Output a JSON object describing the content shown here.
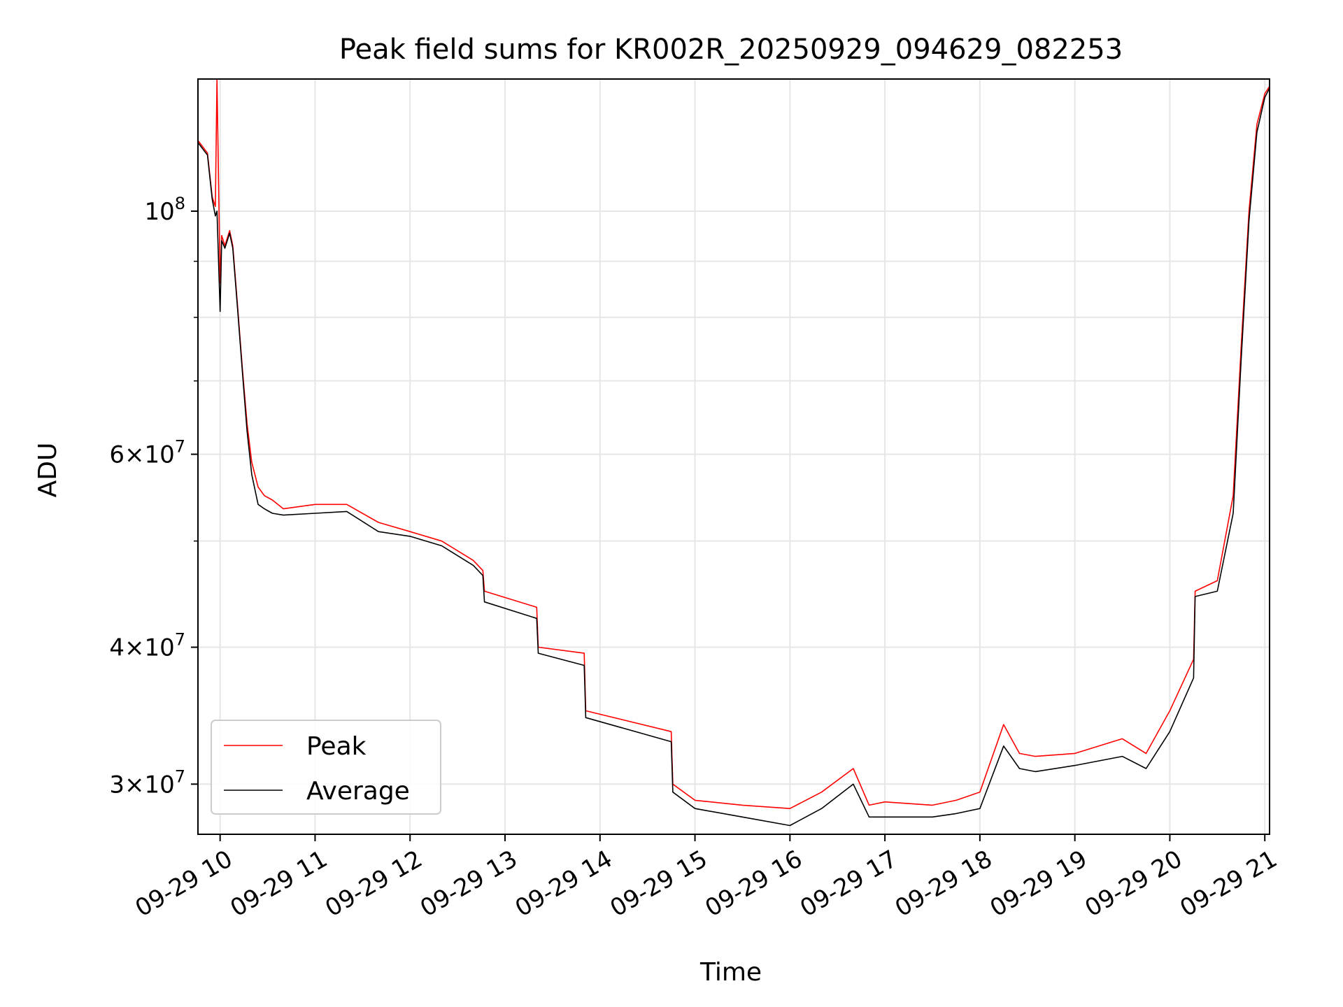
{
  "chart_data": {
    "type": "line",
    "title": "Peak field sums for KR002R_20250929_094629_082253",
    "xlabel": "Time",
    "ylabel": "ADU",
    "yscale": "log",
    "grid": true,
    "legend_position": "lower-left",
    "xlim": [
      "2025-09-29 09:46",
      "2025-09-29 21:03"
    ],
    "ylim": [
      27000000,
      132000000
    ],
    "x_ticks": [
      {
        "value": "2025-09-29 10:00",
        "label": "09-29 10"
      },
      {
        "value": "2025-09-29 11:00",
        "label": "09-29 11"
      },
      {
        "value": "2025-09-29 12:00",
        "label": "09-29 12"
      },
      {
        "value": "2025-09-29 13:00",
        "label": "09-29 13"
      },
      {
        "value": "2025-09-29 14:00",
        "label": "09-29 14"
      },
      {
        "value": "2025-09-29 15:00",
        "label": "09-29 15"
      },
      {
        "value": "2025-09-29 16:00",
        "label": "09-29 16"
      },
      {
        "value": "2025-09-29 17:00",
        "label": "09-29 17"
      },
      {
        "value": "2025-09-29 18:00",
        "label": "09-29 18"
      },
      {
        "value": "2025-09-29 19:00",
        "label": "09-29 19"
      },
      {
        "value": "2025-09-29 20:00",
        "label": "09-29 20"
      },
      {
        "value": "2025-09-29 21:00",
        "label": "09-29 21"
      }
    ],
    "y_ticks_major": [
      {
        "value": 30000000,
        "coef": "3",
        "exp": "7"
      },
      {
        "value": 40000000,
        "coef": "4",
        "exp": "7"
      },
      {
        "value": 60000000,
        "coef": "6",
        "exp": "7"
      },
      {
        "value": 100000000,
        "coef": "",
        "exp": "8"
      }
    ],
    "y_ticks_minor": [
      50000000,
      70000000,
      80000000,
      90000000
    ],
    "series": [
      {
        "name": "Peak",
        "color": "#ff0000",
        "x": [
          "2025-09-29 09:46",
          "2025-09-29 09:52",
          "2025-09-29 09:55",
          "2025-09-29 09:57",
          "2025-09-29 09:58",
          "2025-09-29 10:00",
          "2025-09-29 10:01",
          "2025-09-29 10:03",
          "2025-09-29 10:06",
          "2025-09-29 10:08",
          "2025-09-29 10:11",
          "2025-09-29 10:14",
          "2025-09-29 10:17",
          "2025-09-29 10:20",
          "2025-09-29 10:24",
          "2025-09-29 10:28",
          "2025-09-29 10:33",
          "2025-09-29 10:40",
          "2025-09-29 11:00",
          "2025-09-29 11:20",
          "2025-09-29 11:40",
          "2025-09-29 12:00",
          "2025-09-29 12:20",
          "2025-09-29 12:40",
          "2025-09-29 12:46",
          "2025-09-29 12:47",
          "2025-09-29 13:20",
          "2025-09-29 13:21",
          "2025-09-29 13:50",
          "2025-09-29 13:51",
          "2025-09-29 14:45",
          "2025-09-29 14:46",
          "2025-09-29 15:00",
          "2025-09-29 15:30",
          "2025-09-29 16:00",
          "2025-09-29 16:20",
          "2025-09-29 16:40",
          "2025-09-29 16:50",
          "2025-09-29 17:00",
          "2025-09-29 17:30",
          "2025-09-29 17:45",
          "2025-09-29 18:00",
          "2025-09-29 18:15",
          "2025-09-29 18:25",
          "2025-09-29 18:35",
          "2025-09-29 19:00",
          "2025-09-29 19:30",
          "2025-09-29 19:45",
          "2025-09-29 20:00",
          "2025-09-29 20:15",
          "2025-09-29 20:16",
          "2025-09-29 20:30",
          "2025-09-29 20:40",
          "2025-09-29 20:45",
          "2025-09-29 20:50",
          "2025-09-29 20:55",
          "2025-09-29 21:00",
          "2025-09-29 21:03"
        ],
        "values": [
          116000000,
          113000000,
          103000000,
          101000000,
          132000000,
          86000000,
          95000000,
          93000000,
          96000000,
          93000000,
          82000000,
          72000000,
          64000000,
          59000000,
          56000000,
          55000000,
          54500000,
          53500000,
          54000000,
          54000000,
          52000000,
          51000000,
          50000000,
          48000000,
          47000000,
          45000000,
          43500000,
          40000000,
          39500000,
          35000000,
          33500000,
          30000000,
          29000000,
          28700000,
          28500000,
          29500000,
          31000000,
          28700000,
          28900000,
          28700000,
          29000000,
          29500000,
          34000000,
          32000000,
          31800000,
          32000000,
          33000000,
          32000000,
          35000000,
          39000000,
          45000000,
          46000000,
          55000000,
          75000000,
          100000000,
          120000000,
          128000000,
          130000000
        ]
      },
      {
        "name": "Average",
        "color": "#000000",
        "x": [
          "2025-09-29 09:46",
          "2025-09-29 09:52",
          "2025-09-29 09:55",
          "2025-09-29 09:57",
          "2025-09-29 09:58",
          "2025-09-29 10:00",
          "2025-09-29 10:01",
          "2025-09-29 10:03",
          "2025-09-29 10:06",
          "2025-09-29 10:08",
          "2025-09-29 10:11",
          "2025-09-29 10:14",
          "2025-09-29 10:17",
          "2025-09-29 10:20",
          "2025-09-29 10:24",
          "2025-09-29 10:28",
          "2025-09-29 10:33",
          "2025-09-29 10:40",
          "2025-09-29 11:00",
          "2025-09-29 11:20",
          "2025-09-29 11:40",
          "2025-09-29 12:00",
          "2025-09-29 12:20",
          "2025-09-29 12:40",
          "2025-09-29 12:46",
          "2025-09-29 12:47",
          "2025-09-29 13:20",
          "2025-09-29 13:21",
          "2025-09-29 13:50",
          "2025-09-29 13:51",
          "2025-09-29 14:45",
          "2025-09-29 14:46",
          "2025-09-29 15:00",
          "2025-09-29 15:30",
          "2025-09-29 16:00",
          "2025-09-29 16:20",
          "2025-09-29 16:40",
          "2025-09-29 16:50",
          "2025-09-29 17:00",
          "2025-09-29 17:30",
          "2025-09-29 17:45",
          "2025-09-29 18:00",
          "2025-09-29 18:15",
          "2025-09-29 18:25",
          "2025-09-29 18:35",
          "2025-09-29 19:00",
          "2025-09-29 19:30",
          "2025-09-29 19:45",
          "2025-09-29 20:00",
          "2025-09-29 20:15",
          "2025-09-29 20:16",
          "2025-09-29 20:30",
          "2025-09-29 20:40",
          "2025-09-29 20:45",
          "2025-09-29 20:50",
          "2025-09-29 20:55",
          "2025-09-29 21:00",
          "2025-09-29 21:03"
        ],
        "values": [
          115500000,
          112500000,
          102500000,
          99000000,
          100000000,
          81000000,
          94000000,
          92500000,
          95500000,
          92500000,
          81500000,
          71500000,
          63000000,
          57500000,
          54000000,
          53500000,
          53000000,
          52800000,
          53000000,
          53200000,
          51000000,
          50500000,
          49500000,
          47500000,
          46500000,
          44000000,
          42500000,
          39500000,
          38500000,
          34500000,
          32800000,
          29500000,
          28500000,
          28000000,
          27500000,
          28500000,
          30000000,
          28000000,
          28000000,
          28000000,
          28200000,
          28500000,
          32500000,
          31000000,
          30800000,
          31200000,
          31800000,
          31000000,
          33500000,
          37500000,
          44500000,
          45000000,
          53000000,
          73000000,
          98000000,
          118000000,
          127000000,
          129500000
        ]
      }
    ]
  }
}
